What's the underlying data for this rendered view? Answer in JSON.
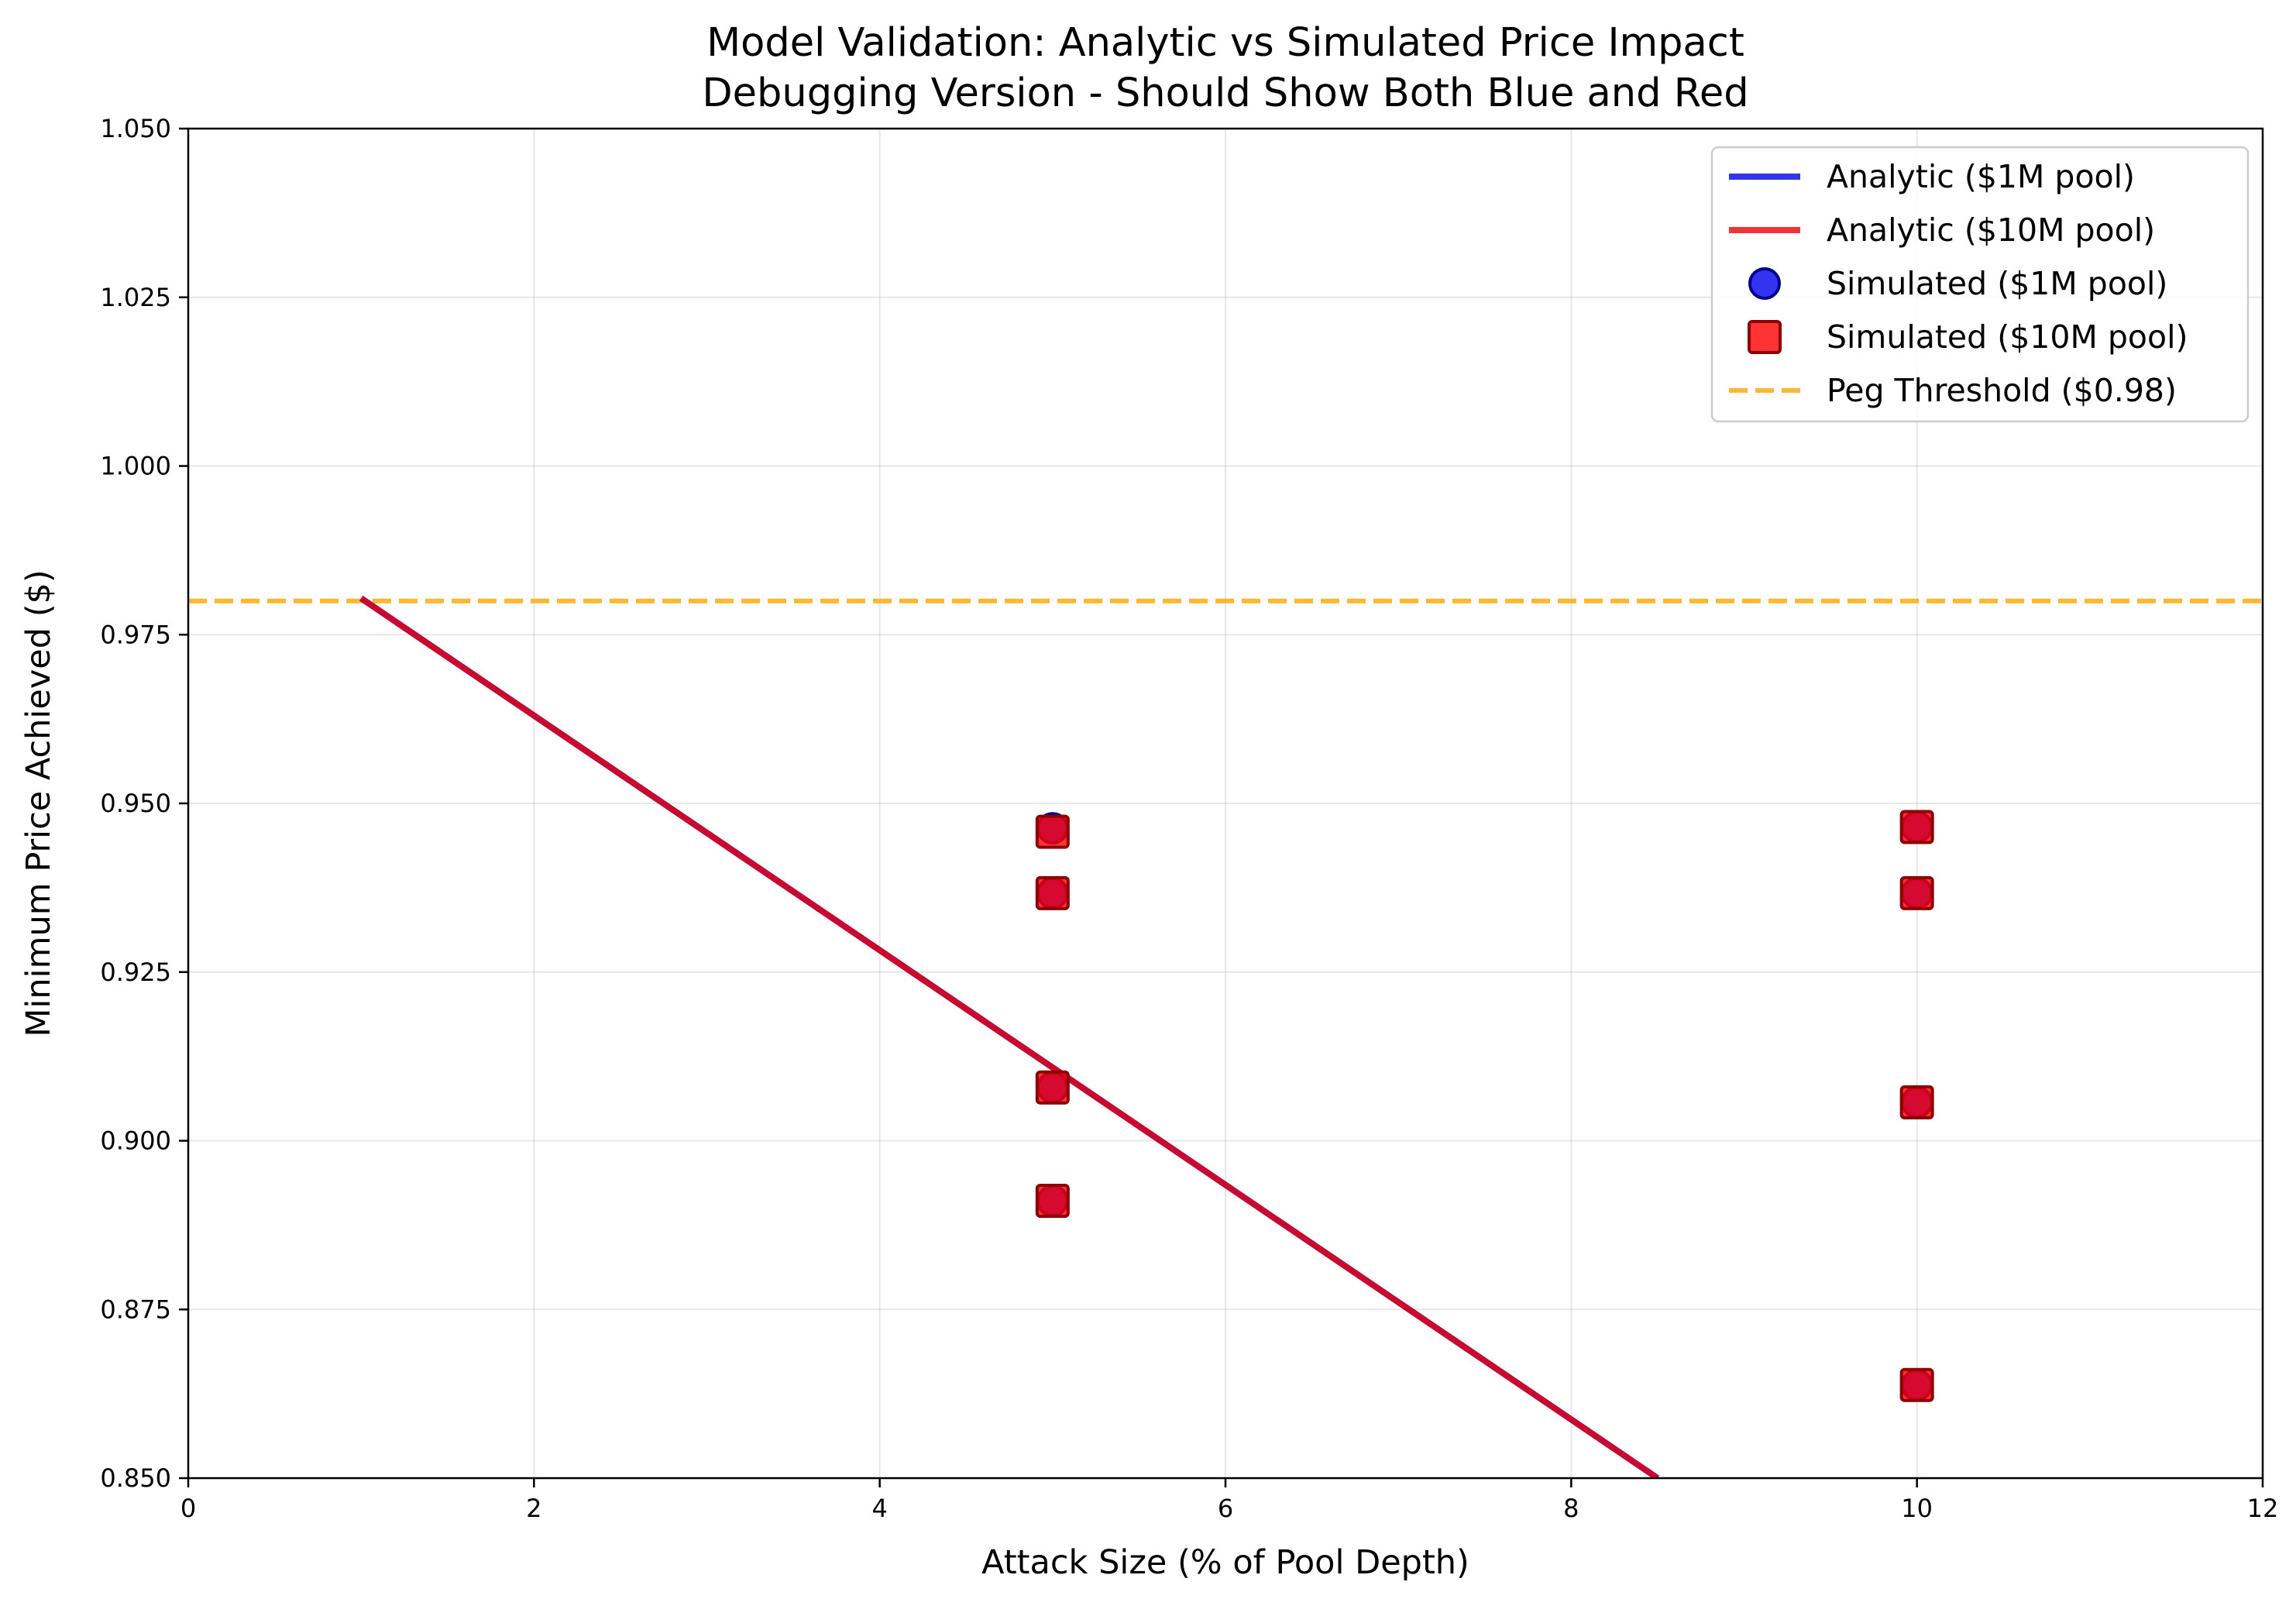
{
  "chart_data": {
    "type": "line",
    "title": "Model Validation: Analytic vs Simulated Price Impact",
    "subtitle": "Debugging Version - Should Show Both Blue and Red",
    "xlabel": "Attack Size (% of Pool Depth)",
    "ylabel": "Minimum Price Achieved ($)",
    "xlim": [
      0,
      12
    ],
    "ylim": [
      0.85,
      1.05
    ],
    "xticks": [
      0,
      2,
      4,
      6,
      8,
      10,
      12
    ],
    "xtick_labels": [
      "0",
      "2",
      "4",
      "6",
      "8",
      "10",
      "12"
    ],
    "yticks": [
      0.85,
      0.875,
      0.9,
      0.925,
      0.95,
      0.975,
      1.0,
      1.025,
      1.05
    ],
    "ytick_labels": [
      "0.850",
      "0.875",
      "0.900",
      "0.925",
      "0.950",
      "0.975",
      "1.000",
      "1.025",
      "1.050"
    ],
    "grid": true,
    "legend_position": "top-right",
    "series": [
      {
        "name": "Analytic ($1M pool)",
        "kind": "line",
        "color": "#0000ee",
        "x": [
          1,
          8.5
        ],
        "y": [
          0.9804,
          0.85
        ]
      },
      {
        "name": "Analytic ($10M pool)",
        "kind": "line",
        "color": "#ee0000",
        "x": [
          1,
          8.5
        ],
        "y": [
          0.9804,
          0.85
        ]
      },
      {
        "name": "Simulated ($1M pool)",
        "kind": "scatter",
        "marker": "circle",
        "color": "#0000ee",
        "x": [
          5,
          5,
          5,
          5,
          10,
          10,
          10,
          10
        ],
        "y": [
          0.9463,
          0.9367,
          0.9079,
          0.8911,
          0.9465,
          0.9367,
          0.9057,
          0.8638
        ]
      },
      {
        "name": "Simulated ($10M pool)",
        "kind": "scatter",
        "marker": "square",
        "color": "#ff0000",
        "x": [
          5,
          5,
          5,
          5,
          10,
          10,
          10,
          10
        ],
        "y": [
          0.9458,
          0.9367,
          0.9079,
          0.8911,
          0.9465,
          0.9367,
          0.9057,
          0.8638
        ]
      },
      {
        "name": "Peg Threshold ($0.98)",
        "kind": "hline",
        "color": "#ffa500",
        "y": 0.98
      }
    ]
  }
}
